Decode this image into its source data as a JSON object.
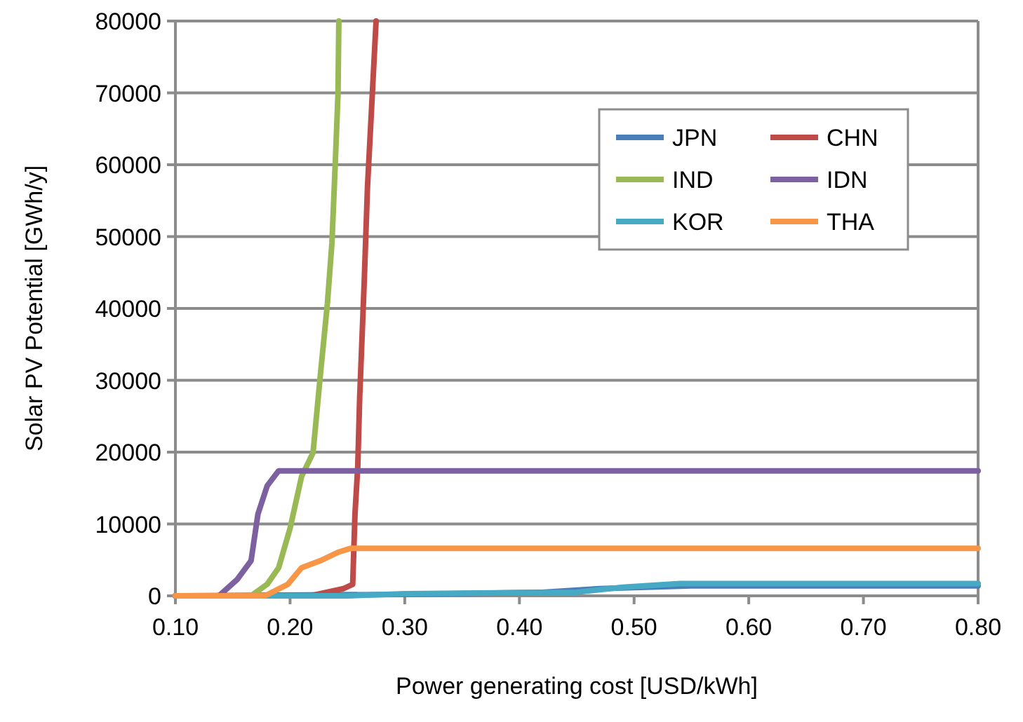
{
  "chart_data": {
    "type": "line",
    "xlabel": "Power generating cost [USD/kWh]",
    "ylabel": "Solar PV Potential [GWh/y]",
    "xlim": [
      0.1,
      0.8
    ],
    "xticks": [
      {
        "value": 0.1,
        "label": "0.10"
      },
      {
        "value": 0.2,
        "label": "0.20"
      },
      {
        "value": 0.3,
        "label": "0.30"
      },
      {
        "value": 0.4,
        "label": "0.40"
      },
      {
        "value": 0.5,
        "label": "0.50"
      },
      {
        "value": 0.6,
        "label": "0.60"
      },
      {
        "value": 0.7,
        "label": "0.70"
      },
      {
        "value": 0.8,
        "label": "0.80"
      }
    ],
    "ylim": [
      0,
      80000
    ],
    "yticks": [
      0,
      10000,
      20000,
      30000,
      40000,
      50000,
      60000,
      70000,
      80000
    ],
    "grid": "y",
    "legend": "top right",
    "line_style": "solid",
    "series": [
      {
        "name": "JPN",
        "color": "#4a7ebb",
        "x": [
          0.1,
          0.3,
          0.42,
          0.47,
          0.55,
          0.8
        ],
        "values": [
          0,
          200,
          500,
          1000,
          1400,
          1400
        ]
      },
      {
        "name": "CHN",
        "color": "#be4b48",
        "x": [
          0.1,
          0.218,
          0.2466,
          0.2546,
          0.2566,
          0.259,
          0.2607,
          0.2647,
          0.2675,
          0.2707,
          0.275
        ],
        "values": [
          0,
          0,
          1000,
          1600,
          11400,
          17900,
          27600,
          43900,
          56900,
          66700,
          80000
        ]
      },
      {
        "name": "IND",
        "color": "#98b954",
        "x": [
          0.1,
          0.166,
          0.18,
          0.19,
          0.2,
          0.21,
          0.22,
          0.2265,
          0.2325,
          0.2365,
          0.2394,
          0.2418,
          0.2425
        ],
        "values": [
          0,
          0,
          1600,
          3900,
          9400,
          16600,
          19900,
          30900,
          40600,
          49100,
          60200,
          69900,
          80000
        ]
      },
      {
        "name": "IDN",
        "color": "#7d60a0",
        "x": [
          0.1,
          0.138,
          0.154,
          0.166,
          0.172,
          0.18,
          0.19,
          0.8
        ],
        "values": [
          0,
          0,
          2300,
          4900,
          11400,
          15300,
          17400,
          17400
        ]
      },
      {
        "name": "KOR",
        "color": "#46aac5",
        "x": [
          0.1,
          0.25,
          0.3,
          0.45,
          0.49,
          0.54,
          0.8
        ],
        "values": [
          0,
          0,
          300,
          500,
          1200,
          1700,
          1700
        ]
      },
      {
        "name": "THA",
        "color": "#f79646",
        "x": [
          0.1,
          0.178,
          0.198,
          0.21,
          0.2265,
          0.2425,
          0.2526,
          0.8
        ],
        "values": [
          0,
          0,
          1600,
          3900,
          4900,
          6100,
          6600,
          6600
        ]
      }
    ]
  }
}
